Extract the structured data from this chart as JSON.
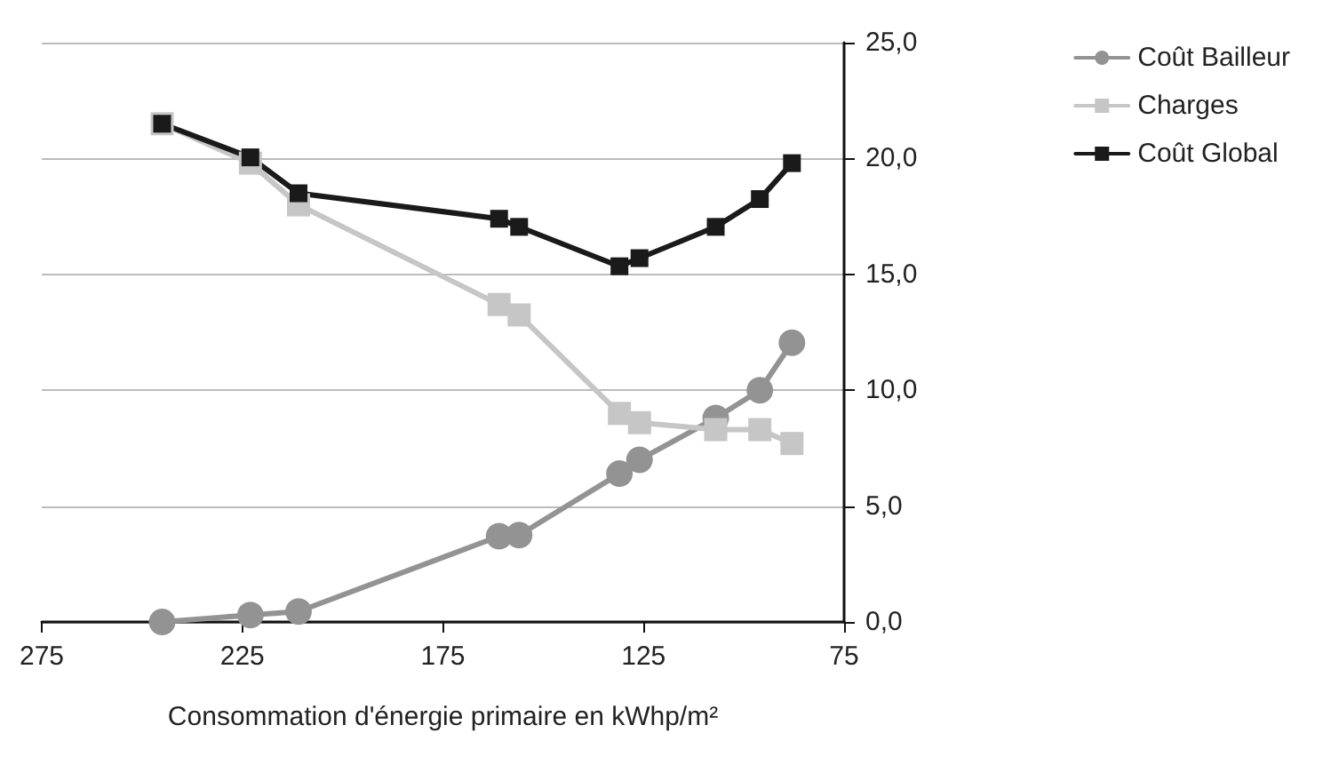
{
  "chart_data": {
    "type": "line",
    "xlabel": "Consommation d'énergie primaire en kWhp/m²",
    "x": [
      245,
      223,
      211,
      161,
      156,
      131,
      126,
      107,
      96,
      88
    ],
    "series": [
      {
        "name": "Coût Bailleur",
        "color": "#939393",
        "marker": "circle",
        "values": [
          0,
          0.3,
          0.45,
          3.7,
          3.75,
          6.4,
          7.0,
          8.8,
          10.0,
          12.05
        ]
      },
      {
        "name": "Charges",
        "color": "#c6c6c6",
        "marker": "square",
        "values": [
          21.5,
          19.8,
          18.0,
          13.7,
          13.25,
          9.0,
          8.6,
          8.3,
          8.3,
          7.7
        ]
      },
      {
        "name": "Coût Global",
        "color": "#1a1a1a",
        "marker": "square",
        "values": [
          21.5,
          20.05,
          18.5,
          17.4,
          17.05,
          15.35,
          15.7,
          17.05,
          18.25,
          19.8
        ]
      }
    ],
    "xlim": [
      275,
      75
    ],
    "xticks": [
      275,
      225,
      175,
      125,
      75
    ],
    "ylim": [
      0,
      25
    ],
    "yticks": [
      {
        "value": 0,
        "label": "0,0"
      },
      {
        "value": 5,
        "label": "5,0"
      },
      {
        "value": 10,
        "label": "10,0"
      },
      {
        "value": 15,
        "label": "15,0"
      },
      {
        "value": 20,
        "label": "20,0"
      },
      {
        "value": 25,
        "label": "25,0"
      }
    ],
    "grid": "y",
    "legend": "top right",
    "line_style": "solid"
  }
}
